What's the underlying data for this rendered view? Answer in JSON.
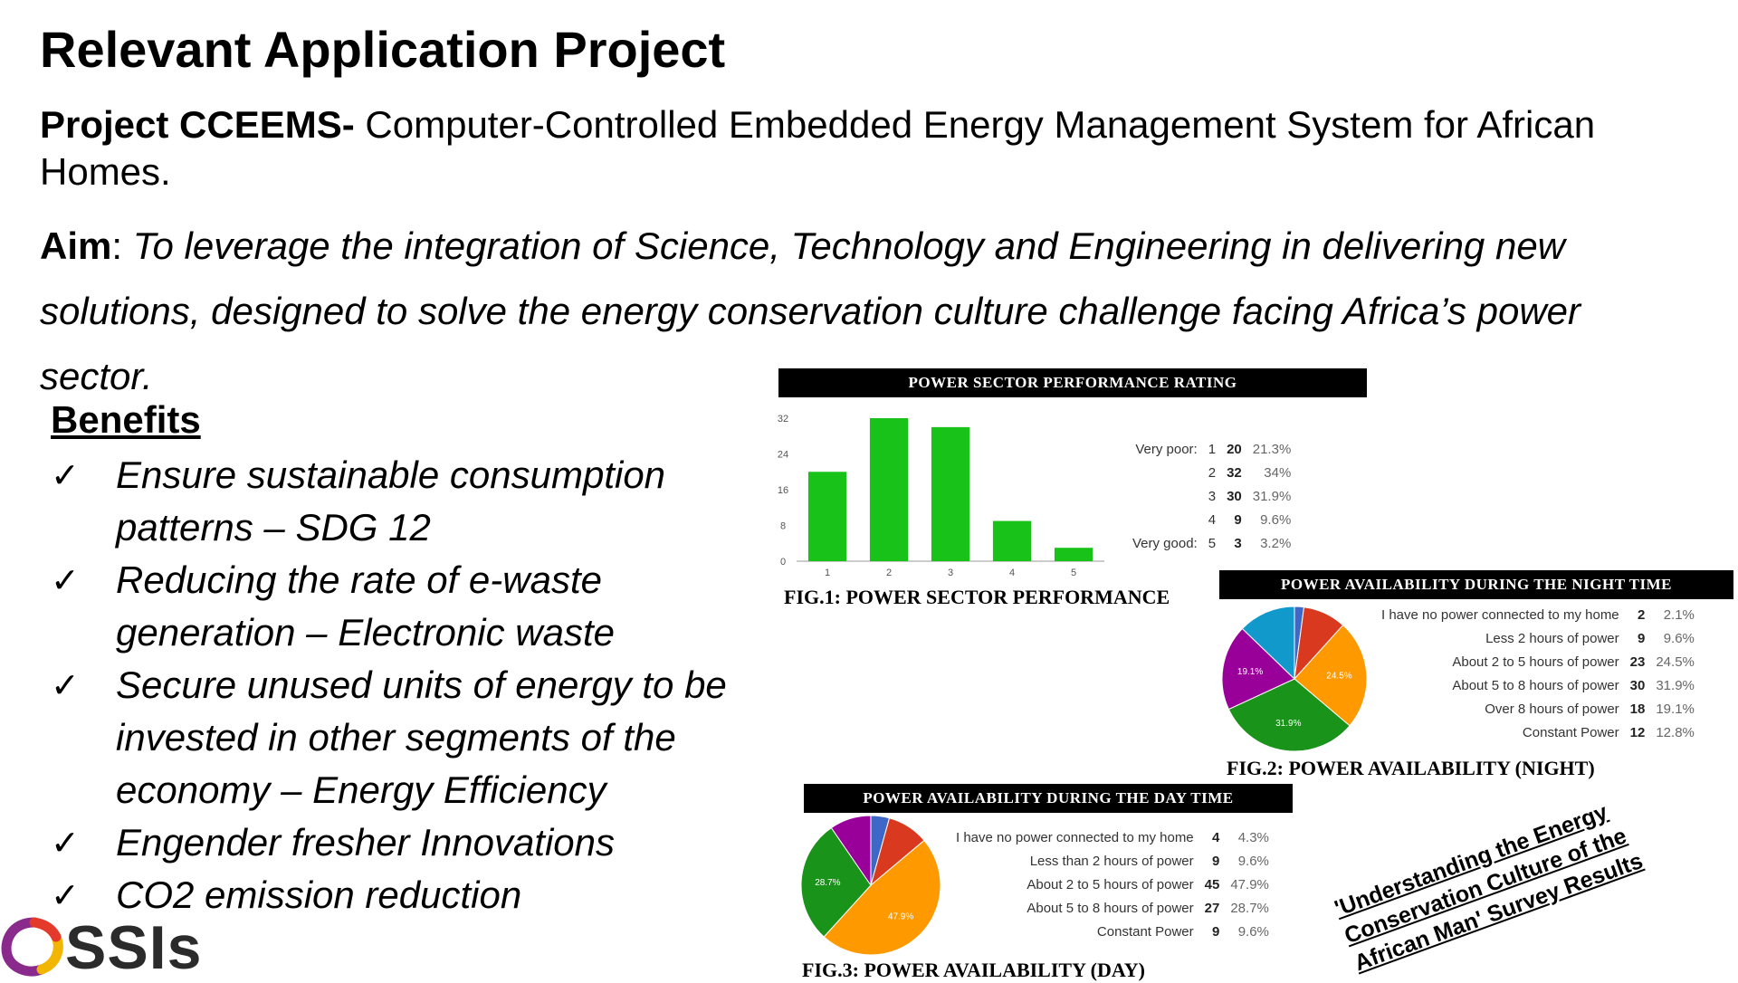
{
  "slide": {
    "title": "Relevant Application Project",
    "project_label": "Project CCEEMS-",
    "project_desc": " Computer-Controlled Embedded Energy Management System for African Homes.",
    "aim_label": "Aim",
    "aim_text": "To leverage the integration of Science, Technology and Engineering in delivering new solutions, designed to solve the energy conservation culture challenge facing Africa’s power sector.",
    "benefits_heading": "Benefits",
    "benefits": [
      "Ensure sustainable consumption patterns – SDG 12",
      "Reducing the rate of e-waste generation – Electronic waste",
      "Secure unused units of energy to be invested in other segments of the economy – Energy Efficiency",
      "Engender fresher Innovations",
      "CO2 emission reduction"
    ],
    "check_glyph": "✓",
    "survey_note": [
      "'Understanding the Energy",
      "Conservation Culture of the",
      "African Man' Survey Results"
    ],
    "logo_text": "SSIs"
  },
  "chart_data": [
    {
      "type": "bar",
      "title": "POWER SECTOR PERFORMANCE RATING",
      "caption": "FIG.1: POWER SECTOR PERFORMANCE",
      "categories": [
        "1",
        "2",
        "3",
        "4",
        "5"
      ],
      "values": [
        20,
        32,
        30,
        9,
        3
      ],
      "yticks": [
        0,
        8,
        16,
        24,
        32
      ],
      "ylim": [
        0,
        32
      ],
      "color": "#19c219",
      "legend": [
        {
          "label": "Very poor:",
          "key": "1",
          "count": "20",
          "pct": "21.3%"
        },
        {
          "label": "",
          "key": "2",
          "count": "32",
          "pct": "34%"
        },
        {
          "label": "",
          "key": "3",
          "count": "30",
          "pct": "31.9%"
        },
        {
          "label": "",
          "key": "4",
          "count": "9",
          "pct": "9.6%"
        },
        {
          "label": "Very good:",
          "key": "5",
          "count": "3",
          "pct": "3.2%"
        }
      ]
    },
    {
      "type": "pie",
      "title": "POWER AVAILABILITY DURING THE NIGHT TIME",
      "caption": "FIG.2: POWER AVAILABILITY (NIGHT)",
      "slices": [
        {
          "label": "I have no power connected to my home",
          "count": "2",
          "pct": "2.1%",
          "value": 2.1,
          "color": "#3d68c8",
          "shown": ""
        },
        {
          "label": "Less 2 hours of power",
          "count": "9",
          "pct": "9.6%",
          "value": 9.6,
          "color": "#d93a1f",
          "shown": ""
        },
        {
          "label": "About 2 to 5 hours of power",
          "count": "23",
          "pct": "24.5%",
          "value": 24.5,
          "color": "#ff9900",
          "shown": "24.5%"
        },
        {
          "label": "About 5 to 8 hours of power",
          "count": "30",
          "pct": "31.9%",
          "value": 31.9,
          "color": "#1a931a",
          "shown": "31.9%"
        },
        {
          "label": "Over 8 hours of power",
          "count": "18",
          "pct": "19.1%",
          "value": 19.1,
          "color": "#990099",
          "shown": "19.1%"
        },
        {
          "label": "Constant Power",
          "count": "12",
          "pct": "12.8%",
          "value": 12.8,
          "color": "#1199cc",
          "shown": ""
        }
      ]
    },
    {
      "type": "pie",
      "title": "POWER AVAILABILITY DURING THE DAY TIME",
      "caption": "FIG.3: POWER AVAILABILITY (DAY)",
      "slices": [
        {
          "label": "I have no power connected to my home",
          "count": "4",
          "pct": "4.3%",
          "value": 4.3,
          "color": "#3d68c8",
          "shown": ""
        },
        {
          "label": "Less than 2 hours of power",
          "count": "9",
          "pct": "9.6%",
          "value": 9.6,
          "color": "#d93a1f",
          "shown": ""
        },
        {
          "label": "About 2 to 5 hours of power",
          "count": "45",
          "pct": "47.9%",
          "value": 47.9,
          "color": "#ff9900",
          "shown": "47.9%"
        },
        {
          "label": "About 5 to 8 hours of power",
          "count": "27",
          "pct": "28.7%",
          "value": 28.7,
          "color": "#1a931a",
          "shown": "28.7%"
        },
        {
          "label": "Constant Power",
          "count": "9",
          "pct": "9.6%",
          "value": 9.6,
          "color": "#990099",
          "shown": ""
        }
      ]
    }
  ]
}
